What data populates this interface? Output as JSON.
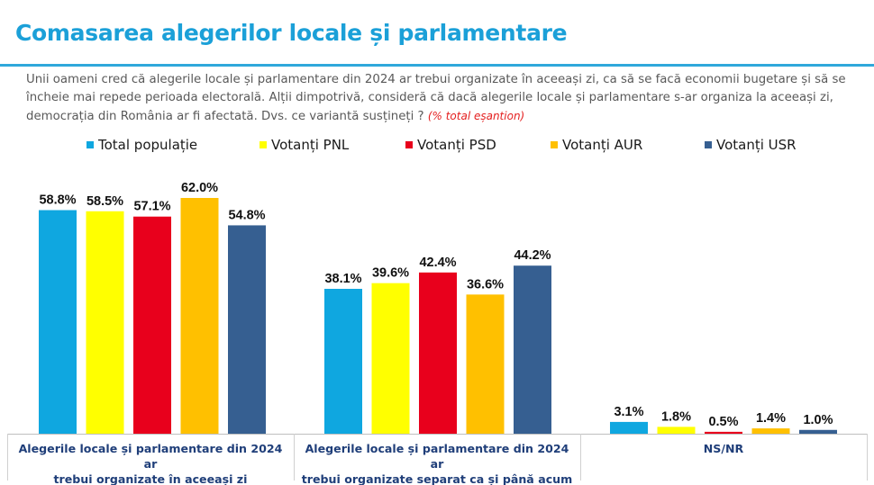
{
  "header": {
    "title": "Comasarea alegerilor locale și parlamentare"
  },
  "question": {
    "text": "Unii oameni cred că alegerile locale și parlamentare din 2024 ar trebui organizate în aceeași zi, ca să se facă economii bugetare și să se încheie mai repede perioada electorală. Alții dimpotrivă, consideră că dacă alegerile locale și parlamentare s-ar organiza la aceeași zi, democrația din România ar fi afectată. Dvs. ce variantă susțineți ?",
    "note": "(% total eșantion)"
  },
  "chart_data": {
    "type": "bar",
    "title": "Comasarea alegerilor locale și parlamentare",
    "xlabel": "",
    "ylabel": "",
    "ylim": [
      0,
      70
    ],
    "grid": false,
    "legend_position": "top",
    "value_suffix": "%",
    "categories": [
      "Alegerile locale și parlamentare din 2024 ar trebui organizate în aceeași zi",
      "Alegerile locale și parlamentare din 2024 ar trebui organizate separat ca și până acum",
      "NS/NR"
    ],
    "category_lines": [
      [
        "Alegerile locale și parlamentare din 2024 ar",
        "trebui organizate în aceeași zi"
      ],
      [
        "Alegerile locale și parlamentare din 2024 ar",
        "trebui organizate separat ca și până acum"
      ],
      [
        "NS/NR"
      ]
    ],
    "series": [
      {
        "name": "Total populație",
        "color": "#0fa7e0",
        "values": [
          58.8,
          38.1,
          3.1
        ]
      },
      {
        "name": "Votanți PNL",
        "color": "#ffff00",
        "values": [
          58.5,
          39.6,
          1.8
        ]
      },
      {
        "name": "Votanți PSD",
        "color": "#e8001c",
        "values": [
          57.1,
          42.4,
          0.5
        ]
      },
      {
        "name": "Votanți AUR",
        "color": "#ffc000",
        "values": [
          62.0,
          36.6,
          1.4
        ]
      },
      {
        "name": "Votanți USR",
        "color": "#365f91",
        "values": [
          54.8,
          44.2,
          1.0
        ]
      }
    ]
  }
}
